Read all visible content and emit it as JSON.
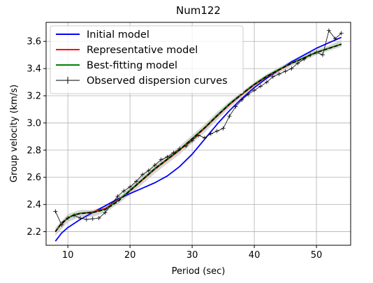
{
  "chart_data": {
    "type": "line",
    "title": "Num122",
    "xlabel": "Period (sec)",
    "ylabel": "Group velocity (km/s)",
    "xlim": [
      6.5,
      55.5
    ],
    "ylim": [
      2.1,
      3.74
    ],
    "xticks": [
      10,
      20,
      30,
      40,
      50
    ],
    "yticks": [
      2.2,
      2.4,
      2.6,
      2.8,
      3.0,
      3.2,
      3.4,
      3.6
    ],
    "ytick_labels": [
      "2.2",
      "2.4",
      "2.6",
      "2.8",
      "3.0",
      "3.2",
      "3.4",
      "3.6"
    ],
    "grid": true,
    "legend_position": "upper-left",
    "uncertainty_band": {
      "color": "#c8c8c8",
      "x": [
        8,
        10,
        12,
        14,
        16,
        18,
        20,
        22,
        24,
        26,
        28,
        30,
        32,
        34,
        36,
        38,
        40,
        42,
        44,
        46,
        48,
        50,
        52,
        54
      ],
      "lower": [
        2.17,
        2.27,
        2.31,
        2.31,
        2.34,
        2.4,
        2.47,
        2.55,
        2.63,
        2.7,
        2.77,
        2.85,
        2.93,
        3.02,
        3.11,
        3.19,
        3.26,
        3.32,
        3.37,
        3.42,
        3.46,
        3.5,
        3.53,
        3.56
      ],
      "upper": [
        2.23,
        2.33,
        2.36,
        2.36,
        2.39,
        2.45,
        2.53,
        2.61,
        2.69,
        2.76,
        2.83,
        2.91,
        2.99,
        3.08,
        3.16,
        3.23,
        3.3,
        3.36,
        3.41,
        3.46,
        3.5,
        3.54,
        3.57,
        3.61
      ]
    },
    "series": [
      {
        "name": "Initial model",
        "color": "#0000ff",
        "style": "solid",
        "x": [
          8,
          9,
          10,
          12,
          14,
          16,
          18,
          20,
          22,
          24,
          26,
          28,
          30,
          32,
          34,
          36,
          38,
          40,
          42,
          44,
          46,
          48,
          50,
          52,
          54
        ],
        "y": [
          2.13,
          2.19,
          2.23,
          2.29,
          2.34,
          2.39,
          2.44,
          2.48,
          2.52,
          2.56,
          2.61,
          2.68,
          2.77,
          2.88,
          2.99,
          3.09,
          3.18,
          3.26,
          3.33,
          3.39,
          3.45,
          3.5,
          3.55,
          3.59,
          3.63
        ]
      },
      {
        "name": "Representative model",
        "color": "#ff0000",
        "style": "solid",
        "x": [
          8,
          9,
          10,
          11,
          12,
          13,
          14,
          16,
          18,
          20,
          22,
          24,
          26,
          28,
          30,
          32,
          34,
          36,
          38,
          40,
          42,
          44,
          46,
          48,
          50,
          52,
          54
        ],
        "y": [
          2.2,
          2.26,
          2.3,
          2.325,
          2.335,
          2.34,
          2.345,
          2.37,
          2.43,
          2.5,
          2.58,
          2.66,
          2.73,
          2.8,
          2.88,
          2.96,
          3.05,
          3.135,
          3.21,
          3.28,
          3.34,
          3.39,
          3.44,
          3.48,
          3.52,
          3.55,
          3.58
        ]
      },
      {
        "name": "Best-fitting model",
        "color": "#008000",
        "style": "solid",
        "x": [
          8,
          9,
          10,
          11,
          12,
          13,
          14,
          16,
          18,
          20,
          22,
          24,
          26,
          28,
          30,
          32,
          34,
          36,
          38,
          40,
          42,
          44,
          46,
          48,
          50,
          52,
          54
        ],
        "y": [
          2.2,
          2.265,
          2.3,
          2.325,
          2.335,
          2.338,
          2.34,
          2.365,
          2.425,
          2.505,
          2.585,
          2.665,
          2.735,
          2.805,
          2.885,
          2.965,
          3.055,
          3.14,
          3.215,
          3.285,
          3.345,
          3.395,
          3.44,
          3.48,
          3.52,
          3.55,
          3.58
        ]
      },
      {
        "name": "",
        "color": "#000000",
        "style": "dashed",
        "x": [
          8,
          9,
          10,
          11,
          12,
          13,
          14,
          16,
          18,
          20,
          22,
          24,
          26,
          28,
          30,
          32,
          34,
          36,
          38,
          40,
          42,
          44,
          46,
          48,
          50,
          52,
          54
        ],
        "y": [
          2.2,
          2.262,
          2.3,
          2.322,
          2.333,
          2.337,
          2.34,
          2.362,
          2.42,
          2.5,
          2.582,
          2.662,
          2.733,
          2.803,
          2.883,
          2.963,
          3.052,
          3.138,
          3.213,
          3.283,
          3.342,
          3.392,
          3.438,
          3.478,
          3.518,
          3.548,
          3.578
        ]
      },
      {
        "name": "Observed dispersion curves",
        "color": "#000000",
        "style": "solid-thin-markers",
        "x": [
          8,
          9,
          10,
          11,
          12,
          13,
          14,
          15,
          16,
          17,
          18,
          19,
          20,
          21,
          22,
          23,
          24,
          25,
          26,
          27,
          28,
          29,
          30,
          31,
          32,
          33,
          34,
          35,
          36,
          37,
          38,
          39,
          40,
          41,
          42,
          43,
          44,
          45,
          46,
          47,
          48,
          49,
          50,
          51,
          52,
          53,
          54
        ],
        "y": [
          2.35,
          2.25,
          2.3,
          2.32,
          2.3,
          2.29,
          2.295,
          2.3,
          2.34,
          2.4,
          2.46,
          2.5,
          2.53,
          2.57,
          2.62,
          2.65,
          2.69,
          2.73,
          2.75,
          2.78,
          2.81,
          2.83,
          2.87,
          2.91,
          2.89,
          2.92,
          2.94,
          2.96,
          3.05,
          3.12,
          3.17,
          3.21,
          3.24,
          3.27,
          3.3,
          3.34,
          3.36,
          3.38,
          3.4,
          3.44,
          3.47,
          3.5,
          3.52,
          3.5,
          3.68,
          3.62,
          3.66
        ]
      }
    ],
    "legend": [
      {
        "label": "Initial model",
        "color": "#0000ff",
        "marker": "line"
      },
      {
        "label": "Representative model",
        "color": "#ff0000",
        "marker": "line"
      },
      {
        "label": "Best-fitting model",
        "color": "#008000",
        "marker": "line"
      },
      {
        "label": "Observed dispersion curves",
        "color": "#000000",
        "marker": "line-plus"
      }
    ]
  }
}
